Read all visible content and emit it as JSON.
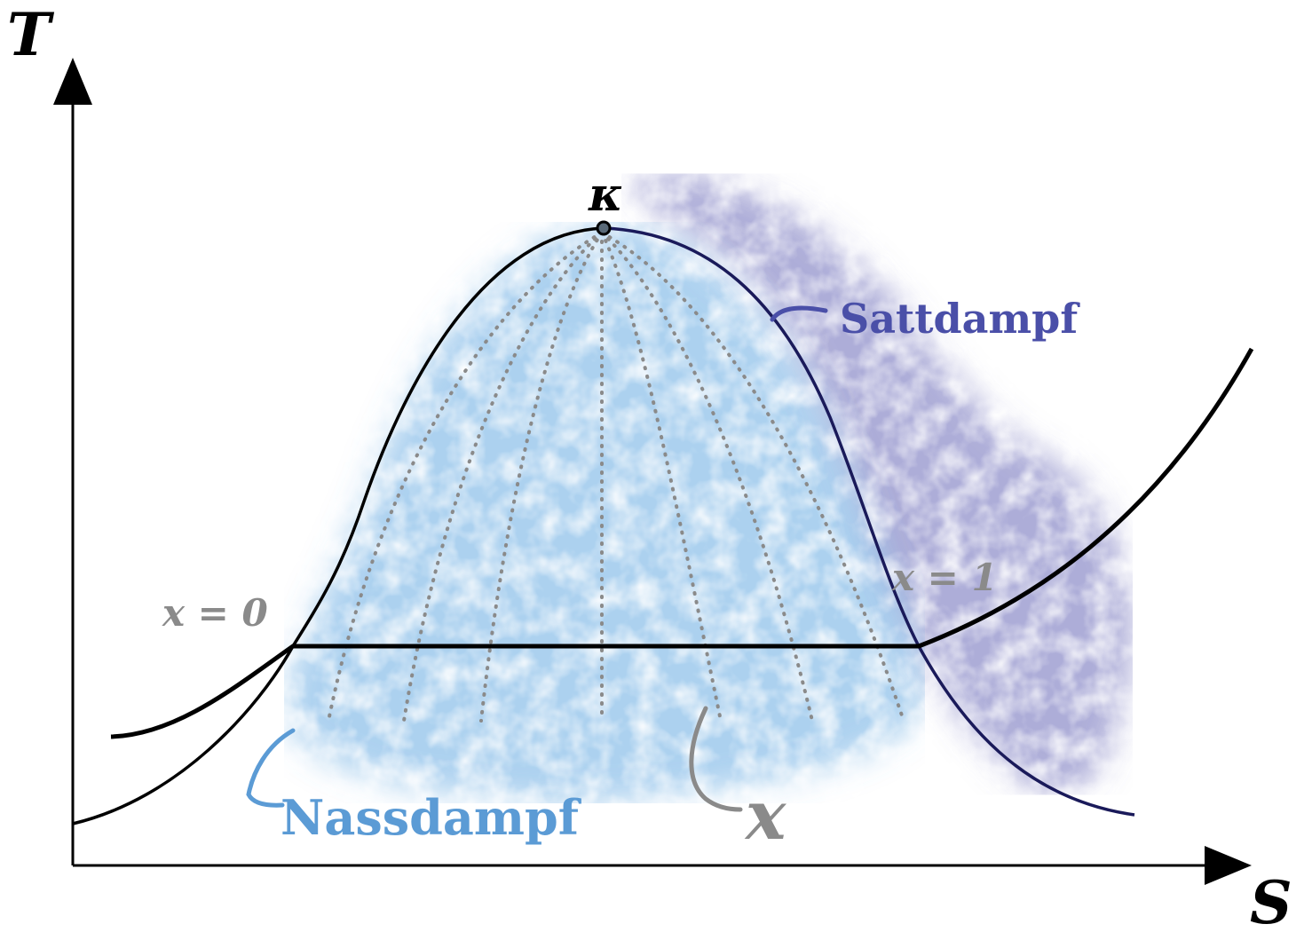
{
  "diagram": {
    "axes": {
      "y_label": "T",
      "x_label": "S"
    },
    "critical_point": {
      "label": "κ"
    },
    "labels": {
      "saturated_vapor": "Sattdampf",
      "wet_steam": "Nassdampf",
      "quality_zero": "x = 0",
      "quality_one": "x = 1",
      "quality": "x"
    },
    "colors": {
      "curve": "#000000",
      "saturated_vapor": "#4a4fa8",
      "wet_steam": "#5b9bd5",
      "quality_lines": "#8a8a8a",
      "vapor_cloud": "#6a6ab8",
      "wet_cloud": "#5aa3e0"
    }
  }
}
